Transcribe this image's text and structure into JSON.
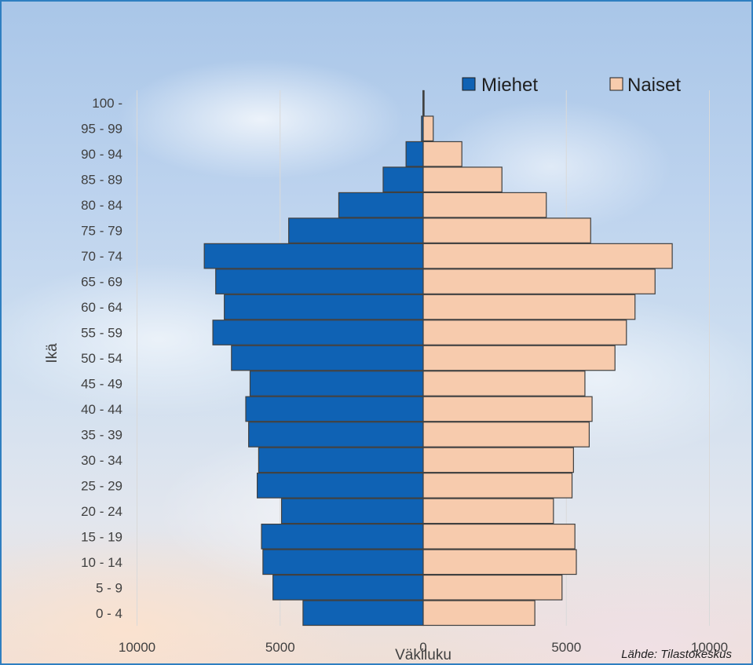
{
  "chart_data": {
    "type": "bar",
    "orientation": "horizontal",
    "layout": "population-pyramid",
    "categories": [
      "0 - 4",
      "5 - 9",
      "10 - 14",
      "15 - 19",
      "20 - 24",
      "25 - 29",
      "30 - 34",
      "35 - 39",
      "40 - 44",
      "45 - 49",
      "50 - 54",
      "55 - 59",
      "60 - 64",
      "65 - 69",
      "70 - 74",
      "75 - 79",
      "80 - 84",
      "85 - 89",
      "90 - 94",
      "95 - 99",
      "100 -"
    ],
    "series": [
      {
        "name": "Miehet",
        "color": "#0f62b4",
        "values": [
          4200,
          5250,
          5600,
          5650,
          4950,
          5800,
          5750,
          6100,
          6200,
          6050,
          6700,
          7350,
          6950,
          7250,
          7650,
          4700,
          2950,
          1400,
          600,
          60,
          10
        ]
      },
      {
        "name": "Naiset",
        "color": "#f7cbad",
        "values": [
          3900,
          4850,
          5350,
          5300,
          4550,
          5200,
          5250,
          5800,
          5900,
          5650,
          6700,
          7100,
          7400,
          8100,
          8700,
          5850,
          4300,
          2750,
          1350,
          350,
          30
        ]
      }
    ],
    "xlabel": "Väkiluku",
    "ylabel": "Ikä",
    "xticks": [
      "10000",
      "5000",
      "0",
      "5000",
      "10000"
    ],
    "xlim": [
      -10000,
      10000
    ],
    "grid": true,
    "legend_position": "top-right",
    "source": "Lähde: Tilastokeskus"
  }
}
